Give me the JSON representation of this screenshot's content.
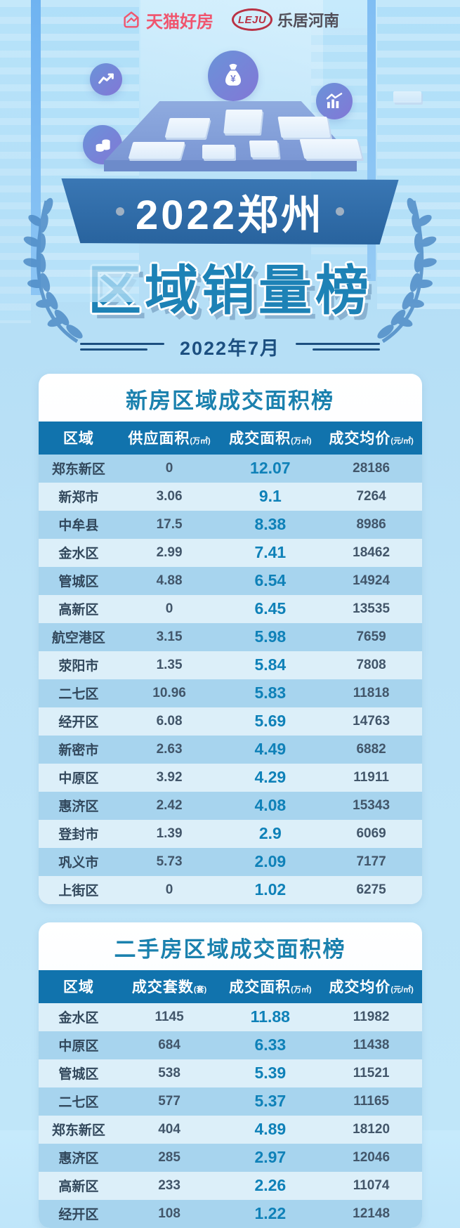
{
  "header": {
    "tmall_logo_text": "天猫好房",
    "leju_logo_text": "LEJU",
    "leju_brand_text": "乐居河南"
  },
  "hero": {
    "icons": [
      "trend-line-icon",
      "money-bag-icon",
      "bar-chart-icon",
      "coins-icon"
    ],
    "money_bag_symbol": "¥",
    "banner_title": "2022郑州",
    "main_title": "区域销量榜",
    "date": "2022年7月"
  },
  "colors": {
    "page_background": "#b9e1f6",
    "banner_blue": "#2e6ba6",
    "title_blue": "#1d82b6",
    "table_header_blue": "#1173ad",
    "row_dark": "#a7d4ee",
    "row_light": "#dceff9",
    "highlight_value_blue": "#0f81b8",
    "region_text": "#32485c",
    "value_text": "#42566a",
    "tmall_pink": "#f0556e",
    "leju_crimson": "#b93245",
    "date_navy": "#1c4f80"
  },
  "chart_data": [
    {
      "type": "table",
      "title": "新房区域成交面积榜",
      "columns": [
        {
          "label": "区域",
          "unit": ""
        },
        {
          "label": "供应面积",
          "unit": "(万㎡)"
        },
        {
          "label": "成交面积",
          "unit": "(万㎡)"
        },
        {
          "label": "成交均价",
          "unit": "(元/㎡)"
        }
      ],
      "rows": [
        [
          "郑东新区",
          "0",
          "12.07",
          "28186"
        ],
        [
          "新郑市",
          "3.06",
          "9.1",
          "7264"
        ],
        [
          "中牟县",
          "17.5",
          "8.38",
          "8986"
        ],
        [
          "金水区",
          "2.99",
          "7.41",
          "18462"
        ],
        [
          "管城区",
          "4.88",
          "6.54",
          "14924"
        ],
        [
          "高新区",
          "0",
          "6.45",
          "13535"
        ],
        [
          "航空港区",
          "3.15",
          "5.98",
          "7659"
        ],
        [
          "荥阳市",
          "1.35",
          "5.84",
          "7808"
        ],
        [
          "二七区",
          "10.96",
          "5.83",
          "11818"
        ],
        [
          "经开区",
          "6.08",
          "5.69",
          "14763"
        ],
        [
          "新密市",
          "2.63",
          "4.49",
          "6882"
        ],
        [
          "中原区",
          "3.92",
          "4.29",
          "11911"
        ],
        [
          "惠济区",
          "2.42",
          "4.08",
          "15343"
        ],
        [
          "登封市",
          "1.39",
          "2.9",
          "6069"
        ],
        [
          "巩义市",
          "5.73",
          "2.09",
          "7177"
        ],
        [
          "上街区",
          "0",
          "1.02",
          "6275"
        ]
      ]
    },
    {
      "type": "table",
      "title": "二手房区域成交面积榜",
      "columns": [
        {
          "label": "区域",
          "unit": ""
        },
        {
          "label": "成交套数",
          "unit": "(套)"
        },
        {
          "label": "成交面积",
          "unit": "(万㎡)"
        },
        {
          "label": "成交均价",
          "unit": "(元/㎡)"
        }
      ],
      "rows": [
        [
          "金水区",
          "1145",
          "11.88",
          "11982"
        ],
        [
          "中原区",
          "684",
          "6.33",
          "11438"
        ],
        [
          "管城区",
          "538",
          "5.39",
          "11521"
        ],
        [
          "二七区",
          "577",
          "5.37",
          "11165"
        ],
        [
          "郑东新区",
          "404",
          "4.89",
          "18120"
        ],
        [
          "惠济区",
          "285",
          "2.97",
          "12046"
        ],
        [
          "高新区",
          "233",
          "2.26",
          "11074"
        ],
        [
          "经开区",
          "108",
          "1.22",
          "12148"
        ]
      ]
    }
  ]
}
